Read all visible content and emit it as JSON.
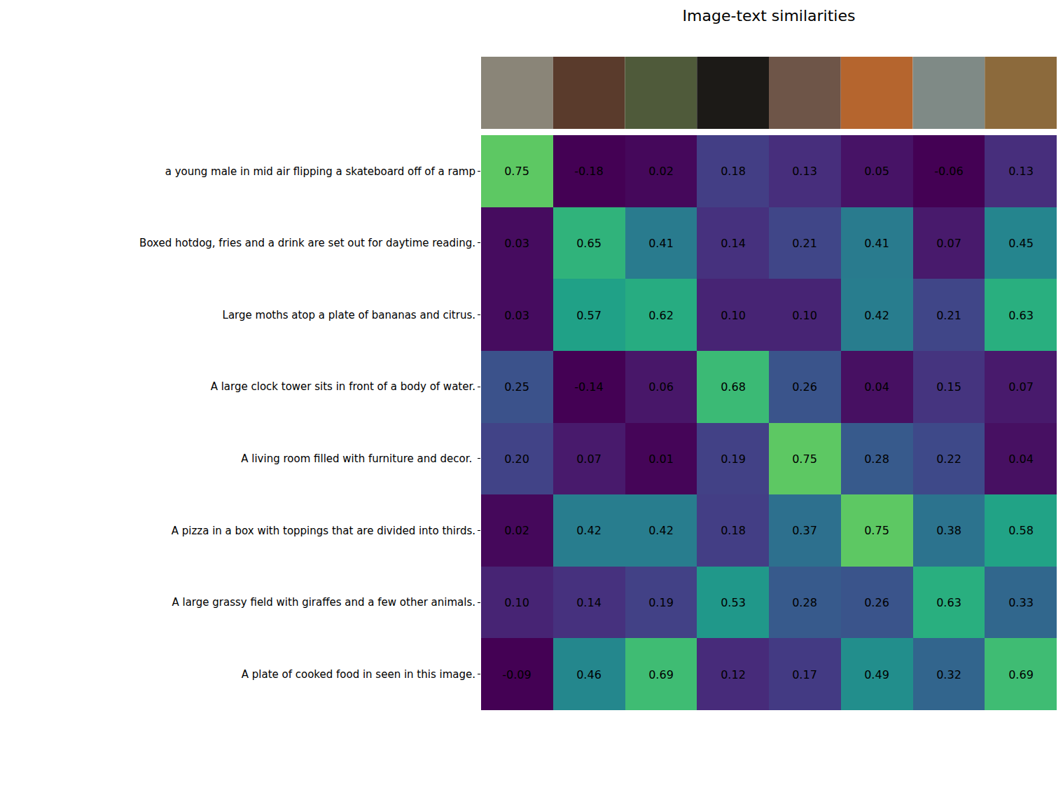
{
  "chart_data": {
    "type": "heatmap",
    "title": "Image-text similarities",
    "categories": [
      null,
      null,
      null,
      null,
      null,
      null,
      null,
      null
    ],
    "rows": [
      "a young male in mid air flipping a skateboard off of a ramp",
      "Boxed hotdog, fries and a drink are set out for daytime reading.",
      "Large moths atop a plate of bananas and citrus.",
      "A large clock tower sits in front of a body of water.",
      "A living room filled with furniture and decor. ",
      "A pizza in a box with toppings that are divided into thirds.",
      "A large grassy field with giraffes and a few other animals.",
      "A plate of cooked food in seen in this image."
    ],
    "values": [
      [
        0.75,
        -0.18,
        0.02,
        0.18,
        0.13,
        0.05,
        -0.06,
        0.13
      ],
      [
        0.03,
        0.65,
        0.41,
        0.14,
        0.21,
        0.41,
        0.07,
        0.45
      ],
      [
        0.03,
        0.57,
        0.62,
        0.1,
        0.1,
        0.42,
        0.21,
        0.63
      ],
      [
        0.25,
        -0.14,
        0.06,
        0.68,
        0.26,
        0.04,
        0.15,
        0.07
      ],
      [
        0.2,
        0.07,
        0.01,
        0.19,
        0.75,
        0.28,
        0.22,
        0.04
      ],
      [
        0.02,
        0.42,
        0.42,
        0.18,
        0.37,
        0.75,
        0.38,
        0.58
      ],
      [
        0.1,
        0.14,
        0.19,
        0.53,
        0.28,
        0.26,
        0.63,
        0.33
      ],
      [
        -0.09,
        0.46,
        0.69,
        0.12,
        0.17,
        0.49,
        0.32,
        0.69
      ]
    ],
    "value_labels": [
      [
        "0.75",
        "-0.18",
        "0.02",
        "0.18",
        "0.13",
        "0.05",
        "-0.06",
        "0.13"
      ],
      [
        "0.03",
        "0.65",
        "0.41",
        "0.14",
        "0.21",
        "0.41",
        "0.07",
        "0.45"
      ],
      [
        "0.03",
        "0.57",
        "0.62",
        "0.10",
        "0.10",
        "0.42",
        "0.21",
        "0.63"
      ],
      [
        "0.25",
        "-0.14",
        "0.06",
        "0.68",
        "0.26",
        "0.04",
        "0.15",
        "0.07"
      ],
      [
        "0.20",
        "0.07",
        "0.01",
        "0.19",
        "0.75",
        "0.28",
        "0.22",
        "0.04"
      ],
      [
        "0.02",
        "0.42",
        "0.42",
        "0.18",
        "0.37",
        "0.75",
        "0.38",
        "0.58"
      ],
      [
        "0.10",
        "0.14",
        "0.19",
        "0.53",
        "0.28",
        "0.26",
        "0.63",
        "0.33"
      ],
      [
        "-0.09",
        "0.46",
        "0.69",
        "0.12",
        "0.17",
        "0.49",
        "0.32",
        "0.69"
      ]
    ],
    "zlim": [
      0,
      1
    ],
    "color": "Viridis",
    "data_labels": true,
    "tick_labels": "y",
    "grid": false
  }
}
